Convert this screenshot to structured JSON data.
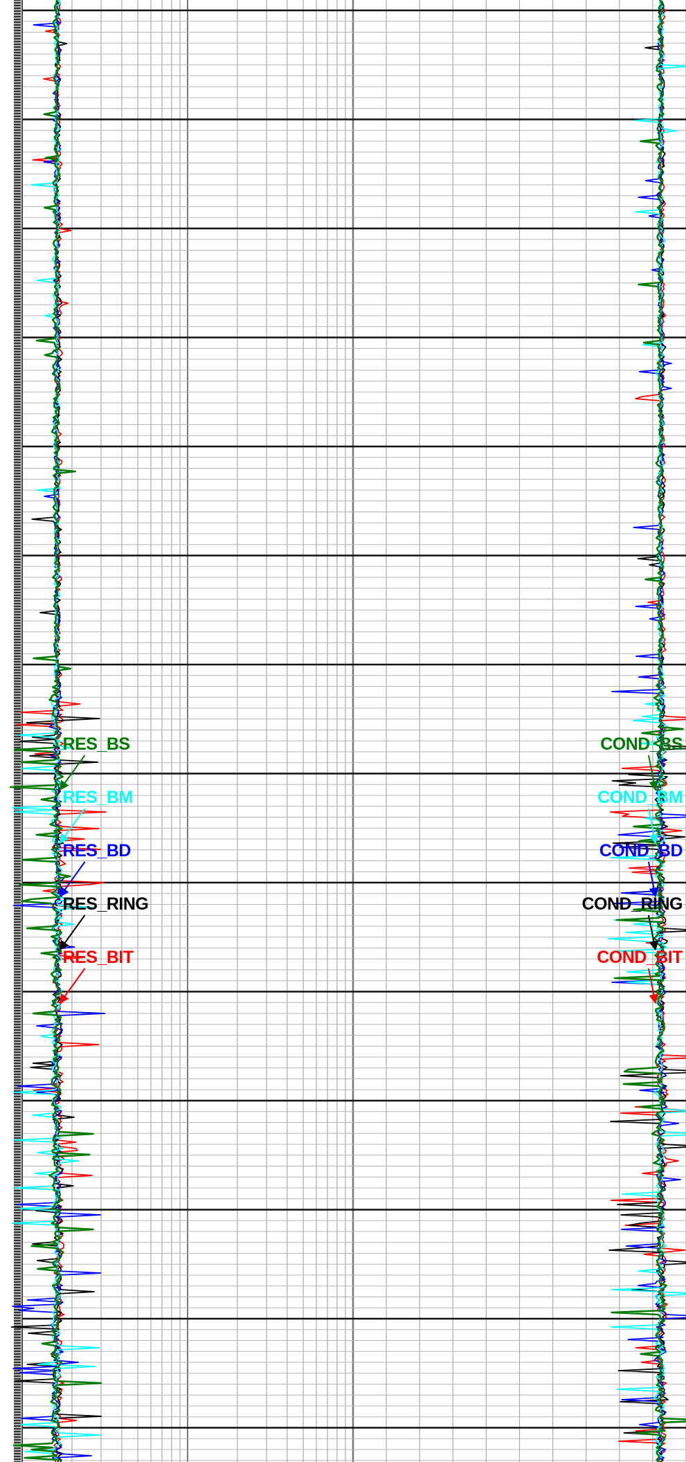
{
  "chart_data": {
    "type": "line",
    "title": "",
    "xlabel": "",
    "ylabel": "",
    "grid": true,
    "tracks": [
      {
        "name": "",
        "scale": "logarithmic",
        "decades": 2,
        "series": [
          {
            "name": "RES_BS",
            "color": "#007a00",
            "approx_level": 1.05
          },
          {
            "name": "RES_BM",
            "color": "#00ffff",
            "approx_level": 1.05
          },
          {
            "name": "RES_BD",
            "color": "#0000ff",
            "approx_level": 1.05
          },
          {
            "name": "RES_RING",
            "color": "#000000",
            "approx_level": 1.05
          },
          {
            "name": "RES_BIT",
            "color": "#ff0000",
            "approx_level": 1.05
          }
        ]
      },
      {
        "name": "",
        "scale": "linear",
        "series": [
          {
            "name": "COND_BS",
            "color": "#007a00",
            "approx_fraction_of_width": 0.9
          },
          {
            "name": "COND_BM",
            "color": "#00ffff",
            "approx_fraction_of_width": 0.9
          },
          {
            "name": "COND_BD",
            "color": "#0000ff",
            "approx_fraction_of_width": 0.9
          },
          {
            "name": "COND_RING",
            "color": "#000000",
            "approx_fraction_of_width": 0.9
          },
          {
            "name": "COND_BIT",
            "color": "#ff0000",
            "approx_fraction_of_width": 0.9
          }
        ]
      }
    ],
    "depth_major_divisions": 13,
    "noisy_interval_fraction": [
      0.47,
      1.0
    ]
  }
}
